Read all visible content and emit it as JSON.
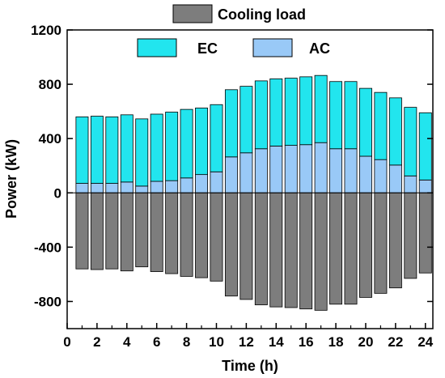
{
  "chart_data": {
    "type": "bar",
    "title": "",
    "xlabel": "Time (h)",
    "ylabel": "Power (kW)",
    "x": [
      1,
      2,
      3,
      4,
      5,
      6,
      7,
      8,
      9,
      10,
      11,
      12,
      13,
      14,
      15,
      16,
      17,
      18,
      19,
      20,
      21,
      22,
      23,
      24
    ],
    "xlim": [
      0,
      24.5
    ],
    "ylim": [
      -1000,
      1200
    ],
    "xticks": [
      "0",
      "2",
      "4",
      "6",
      "8",
      "10",
      "12",
      "14",
      "16",
      "18",
      "20",
      "22",
      "24"
    ],
    "yticks": [
      "-800",
      "-400",
      "0",
      "400",
      "800",
      "1200"
    ],
    "stacked": true,
    "grid": false,
    "legend_position": "top",
    "series": [
      {
        "name": "AC",
        "color": "#99c9f7",
        "values": [
          70,
          70,
          70,
          80,
          50,
          85,
          90,
          110,
          135,
          155,
          265,
          295,
          325,
          345,
          350,
          355,
          370,
          325,
          325,
          270,
          245,
          205,
          125,
          95
        ]
      },
      {
        "name": "EC",
        "color": "#22e5ee",
        "values": [
          490,
          495,
          490,
          495,
          495,
          495,
          505,
          505,
          490,
          495,
          495,
          490,
          500,
          495,
          495,
          500,
          495,
          495,
          495,
          500,
          495,
          495,
          505,
          495
        ]
      },
      {
        "name": "Cooling load",
        "color": "#7d7d7d",
        "values": [
          -560,
          -565,
          -560,
          -575,
          -545,
          -580,
          -595,
          -615,
          -625,
          -650,
          -760,
          -785,
          -825,
          -840,
          -845,
          -855,
          -865,
          -820,
          -820,
          -770,
          -740,
          -700,
          -630,
          -590
        ]
      }
    ]
  }
}
